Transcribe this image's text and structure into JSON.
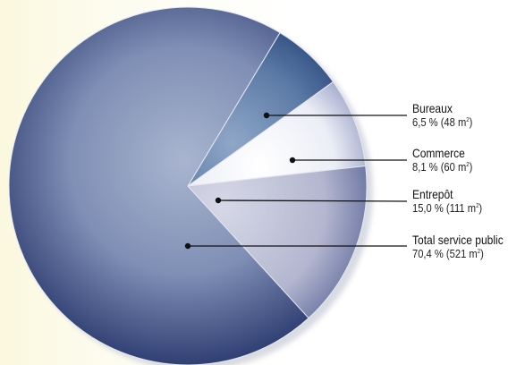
{
  "chart_data": {
    "type": "pie",
    "title": "",
    "unit": "m²",
    "legend": "right",
    "series": [
      {
        "name": "Bureaux",
        "percent_label": "6,5 %",
        "value": 48,
        "value_text": "48 m",
        "color": "#46689a"
      },
      {
        "name": "Commerce",
        "percent_label": "8,1 %",
        "value": 60,
        "value_text": "60 m",
        "color": "#e8e9f1"
      },
      {
        "name": "Entrepôt",
        "percent_label": "15,0 %",
        "value": 111,
        "value_text": "111 m",
        "color": "#b7bad1"
      },
      {
        "name": "Total service public",
        "percent_label": "70,4 %",
        "value": 521,
        "value_text": "521 m",
        "color": "#7d8cb1"
      }
    ]
  }
}
